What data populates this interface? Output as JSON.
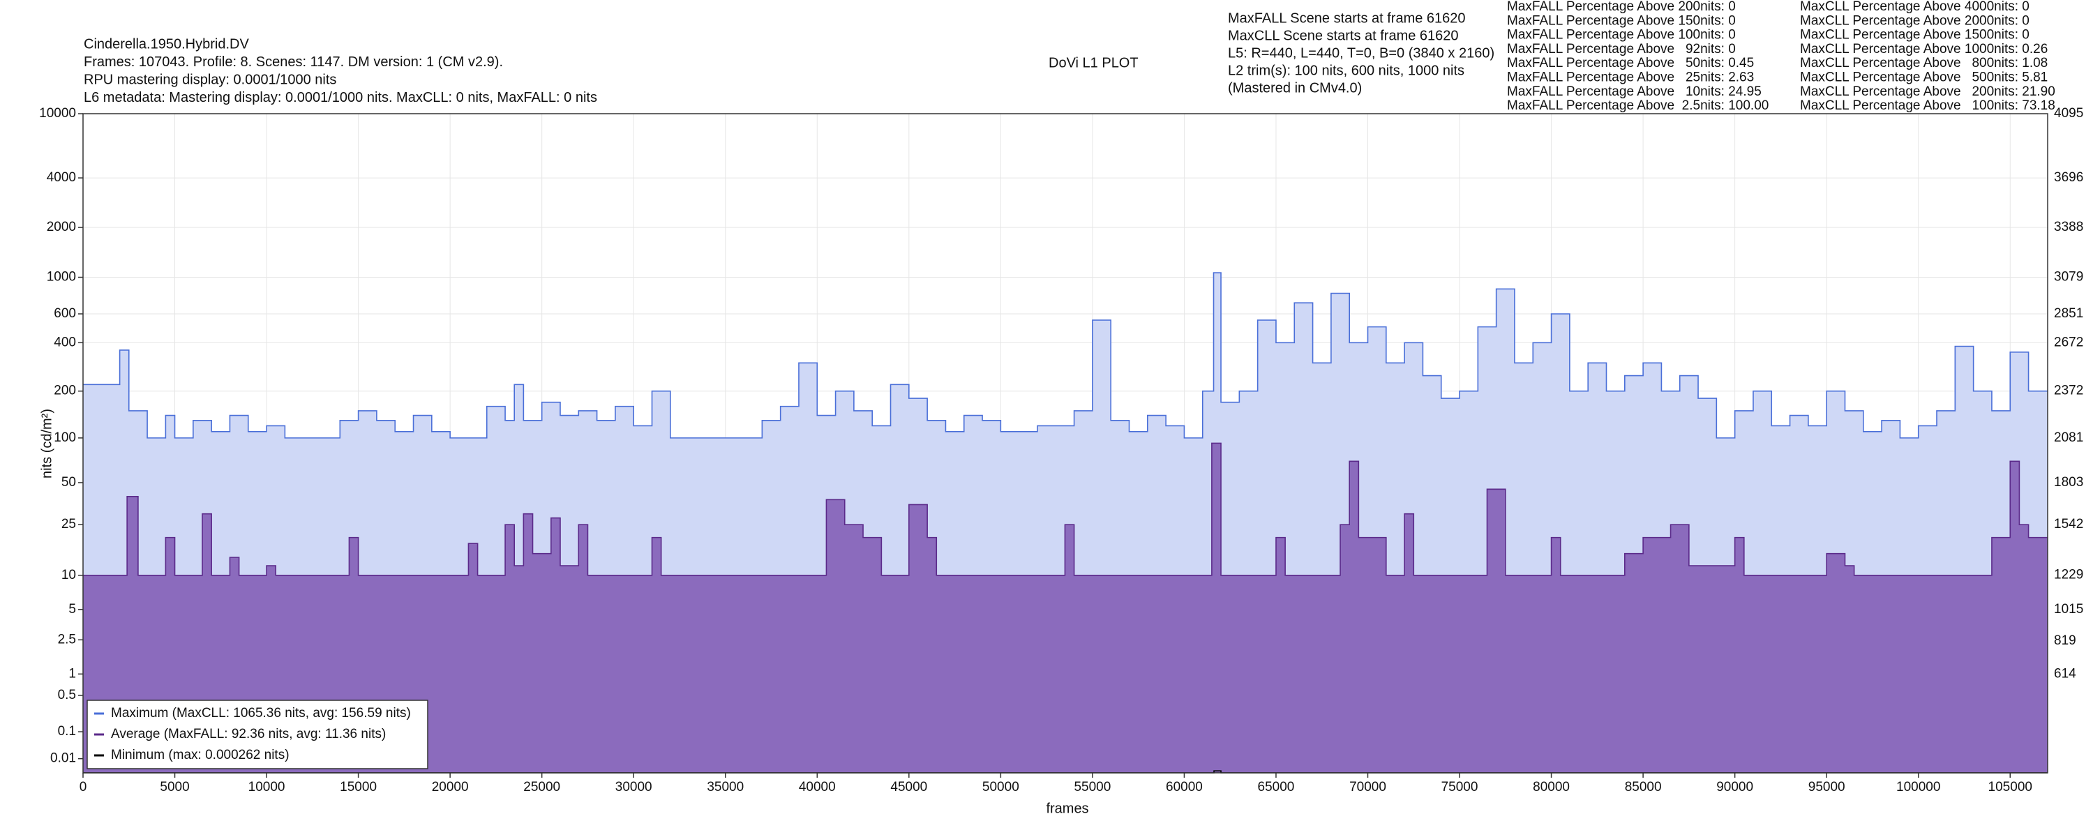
{
  "chart_data": {
    "type": "step-area",
    "title": "DoVi L1 PLOT",
    "info_lines": [
      "Cinderella.1950.Hybrid.DV",
      "Frames: 107043. Profile: 8. Scenes: 1147. DM version: 1 (CM v2.9).",
      "RPU mastering display: 0.0001/1000 nits",
      "L6 metadata: Mastering display: 0.0001/1000 nits. MaxCLL: 0 nits, MaxFALL: 0 nits"
    ],
    "scene_lines": [
      "MaxFALL Scene starts at frame 61620",
      "MaxCLL Scene starts at frame 61620",
      "L5: R=440, L=440, T=0, B=0 (3840 x 2160)",
      "L2 trim(s): 100 nits, 600 nits, 1000 nits",
      "(Mastered in CMv4.0)"
    ],
    "maxfall_stats": [
      "MaxFALL Percentage Above 200nits: 0",
      "MaxFALL Percentage Above 150nits: 0",
      "MaxFALL Percentage Above 100nits: 0",
      "MaxFALL Percentage Above   92nits: 0",
      "MaxFALL Percentage Above   50nits: 0.45",
      "MaxFALL Percentage Above   25nits: 2.63",
      "MaxFALL Percentage Above   10nits: 24.95",
      "MaxFALL Percentage Above  2.5nits: 100.00"
    ],
    "maxcll_stats": [
      "MaxCLL Percentage Above 4000nits: 0",
      "MaxCLL Percentage Above 2000nits: 0",
      "MaxCLL Percentage Above 1500nits: 0",
      "MaxCLL Percentage Above 1000nits: 0.26",
      "MaxCLL Percentage Above   800nits: 1.08",
      "MaxCLL Percentage Above   500nits: 5.81",
      "MaxCLL Percentage Above   200nits: 21.90",
      "MaxCLL Percentage Above   100nits: 73.18"
    ],
    "x_label": "frames",
    "y_label": "nits (cd/m²)",
    "y_scale": "pq",
    "xlim": [
      0,
      107043
    ],
    "ylim": [
      0,
      10000
    ],
    "y2lim": [
      0,
      4095
    ],
    "xticks": [
      0,
      5000,
      10000,
      15000,
      20000,
      25000,
      30000,
      35000,
      40000,
      45000,
      50000,
      55000,
      60000,
      65000,
      70000,
      75000,
      80000,
      85000,
      90000,
      95000,
      100000,
      105000
    ],
    "yticks": [
      0.01,
      0.1,
      0.5,
      1,
      2.5,
      5,
      10,
      25,
      50,
      100,
      200,
      400,
      600,
      1000,
      2000,
      4000,
      10000
    ],
    "y2ticks": [
      614,
      819,
      1015,
      1229,
      1542,
      1803,
      2081,
      2372,
      2672,
      2851,
      3079,
      3388,
      3696,
      4095
    ],
    "grid": true,
    "legend": "lower left",
    "series": [
      {
        "name": "Maximum (MaxCLL: 1065.36 nits, avg: 156.59 nits)",
        "color": "#4a6fd8",
        "fill": "#cfd8f6",
        "x": [
          0,
          2000,
          2500,
          3500,
          4500,
          5000,
          6000,
          7000,
          8000,
          9000,
          10000,
          11000,
          13500,
          14000,
          15000,
          16000,
          17000,
          18000,
          19000,
          20000,
          22000,
          23000,
          23500,
          24000,
          25000,
          26000,
          27000,
          28000,
          29000,
          30000,
          31000,
          32000,
          35000,
          37000,
          38000,
          39000,
          40000,
          41000,
          42000,
          43000,
          44000,
          45000,
          46000,
          47000,
          48000,
          49000,
          50000,
          52000,
          54000,
          55000,
          56000,
          57000,
          58000,
          59000,
          60000,
          61000,
          61600,
          62000,
          63000,
          64000,
          65000,
          66000,
          67000,
          68000,
          69000,
          70000,
          71000,
          72000,
          73000,
          74000,
          75000,
          76000,
          77000,
          78000,
          79000,
          80000,
          81000,
          82000,
          83000,
          84000,
          85000,
          86000,
          87000,
          88000,
          89000,
          90000,
          91000,
          92000,
          93000,
          94000,
          95000,
          96000,
          97000,
          98000,
          99000,
          100000,
          101000,
          102000,
          103000,
          104000,
          105000,
          106000
        ],
        "values": [
          220,
          360,
          150,
          100,
          140,
          100,
          130,
          110,
          140,
          110,
          120,
          100,
          100,
          130,
          150,
          130,
          110,
          140,
          110,
          100,
          160,
          130,
          220,
          130,
          170,
          140,
          150,
          130,
          160,
          120,
          200,
          100,
          100,
          130,
          160,
          300,
          140,
          200,
          150,
          120,
          220,
          180,
          130,
          110,
          140,
          130,
          110,
          120,
          150,
          550,
          130,
          110,
          140,
          120,
          100,
          200,
          1065.36,
          170,
          200,
          550,
          400,
          700,
          300,
          800,
          400,
          500,
          300,
          400,
          250,
          180,
          200,
          500,
          850,
          300,
          400,
          600,
          200,
          300,
          200,
          250,
          300,
          200,
          250,
          180,
          100,
          150,
          200,
          120,
          140,
          120,
          200,
          150,
          110,
          130,
          100,
          120,
          150,
          380,
          200,
          150,
          350,
          200
        ]
      },
      {
        "name": "Average (MaxFALL: 92.36 nits, avg: 11.36 nits)",
        "color": "#5b2a8a",
        "fill": "#8b6bbd",
        "x": [
          0,
          2400,
          3000,
          4500,
          5000,
          6500,
          7000,
          8000,
          8500,
          10000,
          10500,
          14500,
          15000,
          21000,
          21500,
          23000,
          23500,
          24000,
          24500,
          25500,
          26000,
          27000,
          27500,
          31000,
          31500,
          40500,
          41500,
          42500,
          43500,
          45000,
          46000,
          46500,
          53500,
          54000,
          61500,
          62000,
          65000,
          65500,
          68500,
          69000,
          69500,
          70500,
          71000,
          72000,
          72500,
          76500,
          77500,
          80000,
          80500,
          84000,
          85000,
          86500,
          87500,
          90000,
          90500,
          95000,
          96000,
          96500,
          104000,
          105000,
          105500,
          106000
        ],
        "values": [
          10,
          40,
          10,
          20,
          10,
          30,
          10,
          14,
          10,
          12,
          10,
          20,
          10,
          18,
          10,
          25,
          12,
          30,
          15,
          28,
          12,
          25,
          10,
          20,
          10,
          38,
          25,
          20,
          10,
          35,
          20,
          10,
          25,
          10,
          92.36,
          10,
          20,
          10,
          25,
          70,
          20,
          20,
          10,
          30,
          10,
          45,
          10,
          20,
          10,
          15,
          20,
          25,
          12,
          20,
          10,
          15,
          12,
          10,
          20,
          70,
          25,
          20
        ]
      },
      {
        "name": "Minimum (max: 0.000262 nits)",
        "color": "#000000",
        "x": [
          0,
          61620,
          62000
        ],
        "values": [
          0,
          0.000262,
          0
        ]
      }
    ]
  }
}
